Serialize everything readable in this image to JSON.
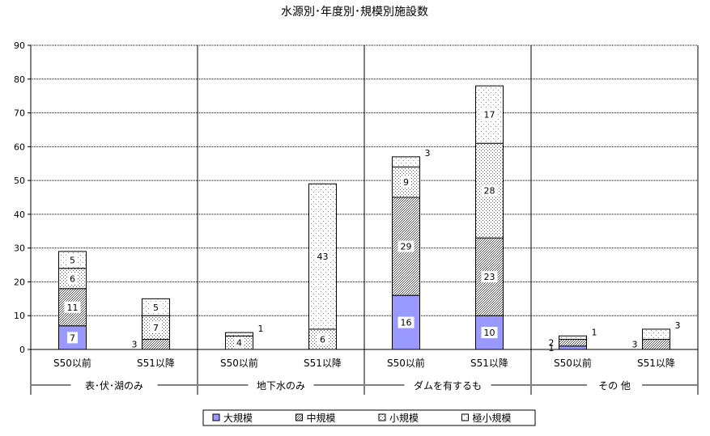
{
  "chart_data": {
    "type": "bar",
    "stacked": true,
    "title": "水源別･年度別･規模別施設数",
    "xlabel": "",
    "ylabel": "",
    "ylim": [
      0,
      90
    ],
    "yticks": [
      0,
      10,
      20,
      30,
      40,
      50,
      60,
      70,
      80,
      90
    ],
    "grid": "horizontal-dotted",
    "legend_position": "bottom",
    "categories": [
      "S50以前",
      "S51以降",
      "S50以前",
      "S51以降",
      "S50以前",
      "S51以降",
      "S50以前",
      "S51以降"
    ],
    "groups": [
      {
        "label": "表･伏･湖のみ",
        "categories": [
          0,
          1
        ]
      },
      {
        "label": "地下水のみ",
        "categories": [
          2,
          3
        ]
      },
      {
        "label": "ダムを有するも",
        "categories": [
          4,
          5
        ]
      },
      {
        "label": "その 他",
        "categories": [
          6,
          7
        ]
      }
    ],
    "series": [
      {
        "name": "大規模",
        "color": "#9999ff",
        "pattern": "solid",
        "values": [
          7,
          0,
          0,
          0,
          16,
          10,
          1,
          0
        ]
      },
      {
        "name": "中規模",
        "color": "#808080",
        "pattern": "dense",
        "values": [
          11,
          3,
          0,
          0,
          29,
          23,
          2,
          3
        ]
      },
      {
        "name": "小規模",
        "color": "#a0a0a0",
        "pattern": "sparse",
        "values": [
          6,
          7,
          4,
          6,
          9,
          28,
          0,
          0
        ]
      },
      {
        "name": "極小規模",
        "color": "#ffffff",
        "pattern": "dots",
        "values": [
          5,
          5,
          1,
          43,
          3,
          17,
          1,
          3
        ]
      }
    ]
  }
}
